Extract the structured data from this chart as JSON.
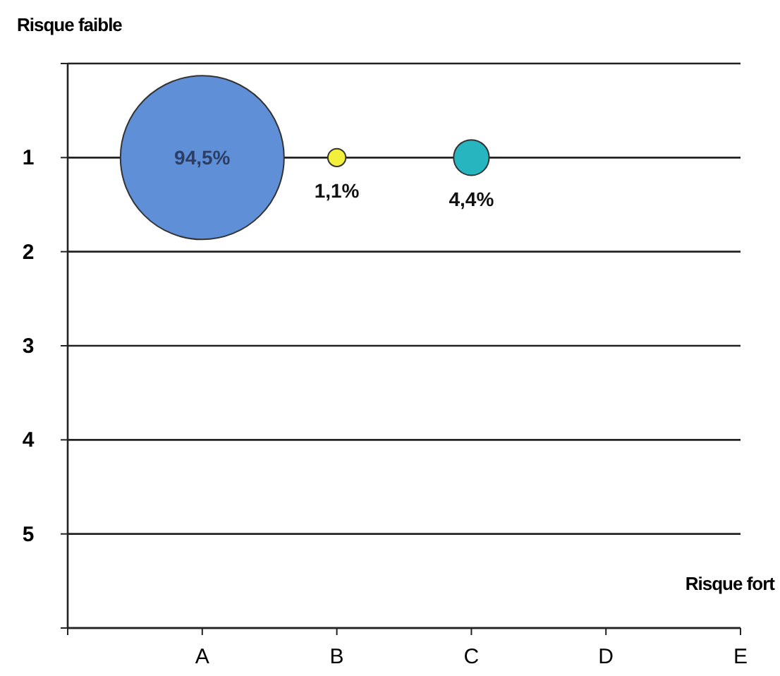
{
  "chart_data": {
    "type": "bubble",
    "xlabel": "Risque fort",
    "ylabel": "Risque faible",
    "categories": [
      null,
      "A",
      "B",
      "C",
      "D",
      "E"
    ],
    "values": [
      null,
      1,
      1,
      1,
      null,
      null
    ],
    "sizes": [
      null,
      1,
      0.012,
      0.047,
      null,
      null
    ],
    "colors": [
      null,
      "#5f8fd6",
      "#f2f03a",
      "#27b5c0",
      null,
      null
    ],
    "annotations": [
      {
        "text": "94,5%",
        "x": "A",
        "y": 1
      },
      {
        "text": "1,1%",
        "x": "B",
        "y": 1
      },
      {
        "text": "4,4%",
        "x": "C",
        "y": 1
      }
    ],
    "ylim": [
      6,
      0
    ],
    "yticks": [
      {
        "value": 0,
        "label": null
      },
      1,
      2,
      3,
      4,
      5,
      {
        "value": 6,
        "label": null
      }
    ],
    "grid": "y"
  }
}
